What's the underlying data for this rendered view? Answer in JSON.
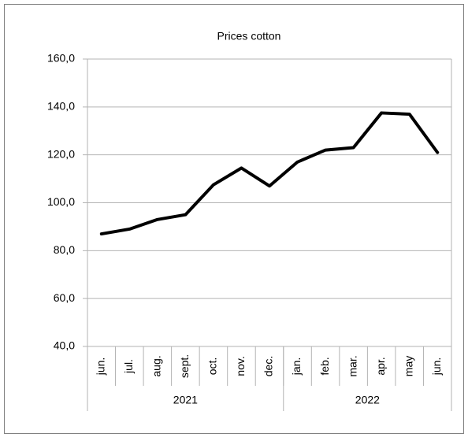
{
  "chart_data": {
    "type": "line",
    "title": "Prices cotton",
    "categories": [
      "jun.",
      "jul.",
      "aug.",
      "sept.",
      "oct.",
      "nov.",
      "dec.",
      "jan.",
      "feb.",
      "mar.",
      "apr.",
      "may",
      "jun."
    ],
    "x_groups": [
      {
        "label": "2021",
        "span": 7
      },
      {
        "label": "2022",
        "span": 6
      }
    ],
    "series": [
      {
        "name": "Prices cotton",
        "color": "#000000",
        "values": [
          87,
          89,
          93,
          95,
          107.5,
          114.5,
          107,
          117,
          122,
          123,
          137.5,
          137,
          121
        ]
      }
    ],
    "ylim": [
      40,
      160
    ],
    "yticks": [
      {
        "value": 40,
        "label": "40,0"
      },
      {
        "value": 60,
        "label": "60,0"
      },
      {
        "value": 80,
        "label": "80,0"
      },
      {
        "value": 100,
        "label": "100,0"
      },
      {
        "value": 120,
        "label": "120,0"
      },
      {
        "value": 140,
        "label": "140,0"
      },
      {
        "value": 160,
        "label": "160,0"
      }
    ],
    "grid": true
  }
}
